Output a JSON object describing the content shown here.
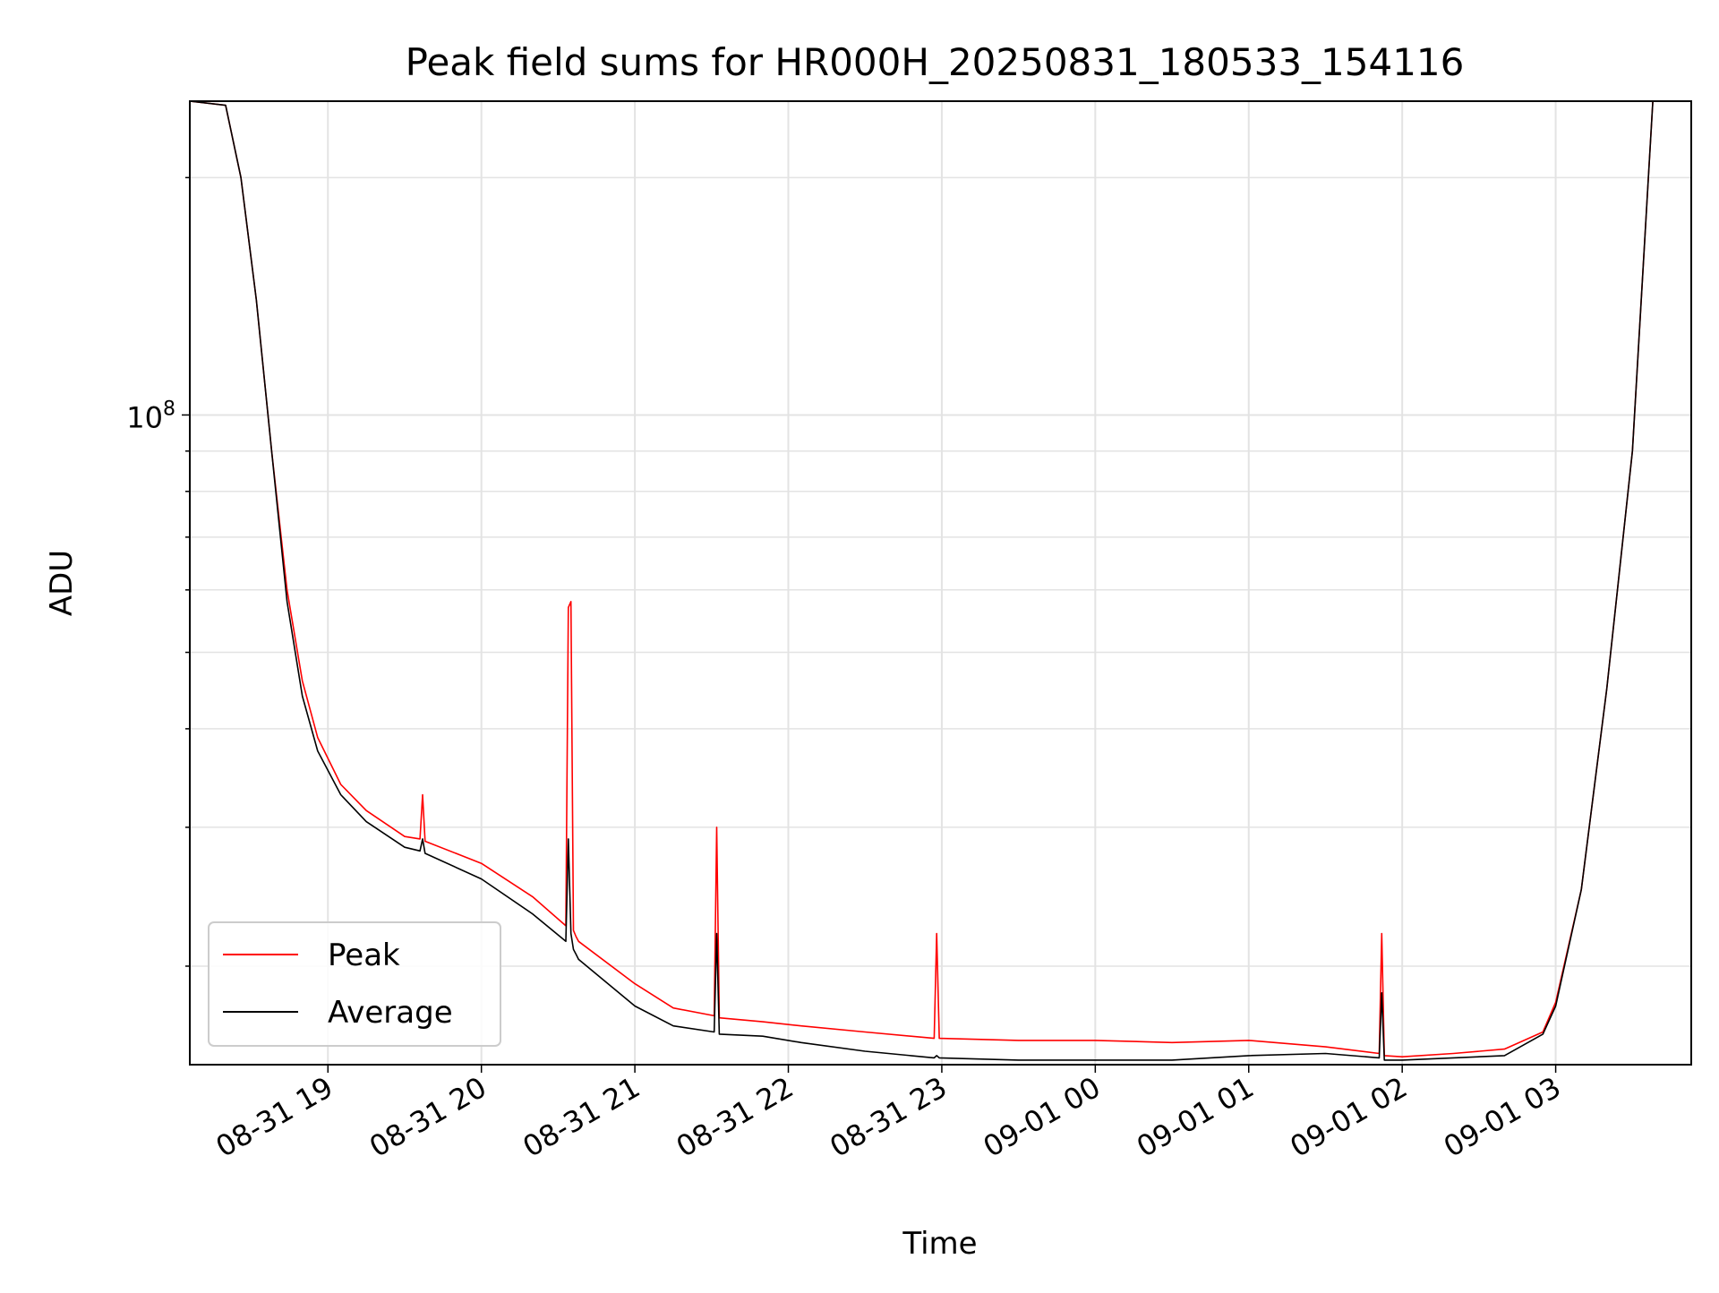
{
  "chart_data": {
    "type": "line",
    "title": "Peak field sums for HR000H_20250831_180533_154116",
    "xlabel": "Time",
    "ylabel": "ADU",
    "y_scale": "log",
    "ylim": [
      15000000,
      250000000
    ],
    "xlim": [
      "2025-08-31 18:06",
      "2025-09-01 03:53"
    ],
    "x_tick_labels": [
      "08-31 19",
      "08-31 20",
      "08-31 21",
      "08-31 22",
      "08-31 23",
      "09-01 00",
      "09-01 01",
      "09-01 02",
      "09-01 03"
    ],
    "x_ticks": [
      "2025-08-31 19:00",
      "2025-08-31 20:00",
      "2025-08-31 21:00",
      "2025-08-31 22:00",
      "2025-08-31 23:00",
      "2025-09-01 00:00",
      "2025-09-01 01:00",
      "2025-09-01 02:00",
      "2025-09-01 03:00"
    ],
    "y_tick_label_base": "10",
    "y_tick_label_exp": "8",
    "y_tick_value": 100000000,
    "grid": true,
    "legend": {
      "position": "lower-left",
      "entries": [
        "Peak",
        "Average"
      ]
    },
    "colors": {
      "Peak": "#ff0000",
      "Average": "#000000"
    },
    "series": [
      {
        "name": "Peak",
        "x": [
          "2025-08-31 18:06",
          "2025-08-31 18:20",
          "2025-08-31 18:26",
          "2025-08-31 18:32",
          "2025-08-31 18:38",
          "2025-08-31 18:44",
          "2025-08-31 18:50",
          "2025-08-31 18:56",
          "2025-08-31 19:05",
          "2025-08-31 19:15",
          "2025-08-31 19:30",
          "2025-08-31 19:36",
          "2025-08-31 19:37",
          "2025-08-31 19:38",
          "2025-08-31 20:00",
          "2025-08-31 20:20",
          "2025-08-31 20:33",
          "2025-08-31 20:34",
          "2025-08-31 20:35",
          "2025-08-31 20:36",
          "2025-08-31 20:37",
          "2025-08-31 20:38",
          "2025-08-31 21:00",
          "2025-08-31 21:15",
          "2025-08-31 21:31",
          "2025-08-31 21:32",
          "2025-08-31 21:33",
          "2025-08-31 21:50",
          "2025-08-31 22:05",
          "2025-08-31 22:30",
          "2025-08-31 22:57",
          "2025-08-31 22:58",
          "2025-08-31 22:59",
          "2025-08-31 23:30",
          "2025-09-01 00:00",
          "2025-09-01 00:30",
          "2025-09-01 01:00",
          "2025-09-01 01:30",
          "2025-09-01 01:51",
          "2025-09-01 01:52",
          "2025-09-01 01:53",
          "2025-09-01 02:00",
          "2025-09-01 02:20",
          "2025-09-01 02:40",
          "2025-09-01 02:55",
          "2025-09-01 03:00",
          "2025-09-01 03:10",
          "2025-09-01 03:20",
          "2025-09-01 03:30",
          "2025-09-01 03:38"
        ],
        "y": [
          250000000,
          247000000,
          200000000,
          140000000,
          90000000,
          60000000,
          46000000,
          39000000,
          34000000,
          31500000,
          29200000,
          29000000,
          33000000,
          28800000,
          27000000,
          24500000,
          22500000,
          57000000,
          58000000,
          22200000,
          21800000,
          21500000,
          19000000,
          17700000,
          17300000,
          30000000,
          17200000,
          17000000,
          16800000,
          16500000,
          16200000,
          22000000,
          16200000,
          16100000,
          16100000,
          16000000,
          16100000,
          15800000,
          15500000,
          22000000,
          15400000,
          15350000,
          15500000,
          15700000,
          16500000,
          18000000,
          25000000,
          45000000,
          90000000,
          250000000
        ]
      },
      {
        "name": "Average",
        "x": [
          "2025-08-31 18:06",
          "2025-08-31 18:20",
          "2025-08-31 18:26",
          "2025-08-31 18:32",
          "2025-08-31 18:38",
          "2025-08-31 18:44",
          "2025-08-31 18:50",
          "2025-08-31 18:56",
          "2025-08-31 19:05",
          "2025-08-31 19:15",
          "2025-08-31 19:30",
          "2025-08-31 19:36",
          "2025-08-31 19:37",
          "2025-08-31 19:38",
          "2025-08-31 20:00",
          "2025-08-31 20:20",
          "2025-08-31 20:33",
          "2025-08-31 20:34",
          "2025-08-31 20:35",
          "2025-08-31 20:36",
          "2025-08-31 20:37",
          "2025-08-31 20:38",
          "2025-08-31 21:00",
          "2025-08-31 21:15",
          "2025-08-31 21:31",
          "2025-08-31 21:32",
          "2025-08-31 21:33",
          "2025-08-31 21:50",
          "2025-08-31 22:05",
          "2025-08-31 22:30",
          "2025-08-31 22:57",
          "2025-08-31 22:58",
          "2025-08-31 22:59",
          "2025-08-31 23:30",
          "2025-09-01 00:00",
          "2025-09-01 00:30",
          "2025-09-01 01:00",
          "2025-09-01 01:30",
          "2025-09-01 01:51",
          "2025-09-01 01:52",
          "2025-09-01 01:53",
          "2025-09-01 02:00",
          "2025-09-01 02:20",
          "2025-09-01 02:40",
          "2025-09-01 02:55",
          "2025-09-01 03:00",
          "2025-09-01 03:10",
          "2025-09-01 03:20",
          "2025-09-01 03:30",
          "2025-09-01 03:38"
        ],
        "y": [
          250000000,
          247000000,
          200000000,
          140000000,
          90000000,
          58000000,
          44000000,
          37500000,
          33000000,
          30500000,
          28300000,
          28000000,
          29000000,
          27800000,
          25800000,
          23300000,
          21500000,
          29000000,
          22000000,
          21000000,
          20700000,
          20400000,
          17800000,
          16800000,
          16500000,
          22000000,
          16400000,
          16300000,
          16000000,
          15600000,
          15300000,
          15400000,
          15300000,
          15200000,
          15200000,
          15200000,
          15400000,
          15500000,
          15300000,
          18500000,
          15200000,
          15200000,
          15300000,
          15400000,
          16400000,
          17800000,
          25000000,
          45000000,
          90000000,
          250000000
        ]
      }
    ]
  }
}
